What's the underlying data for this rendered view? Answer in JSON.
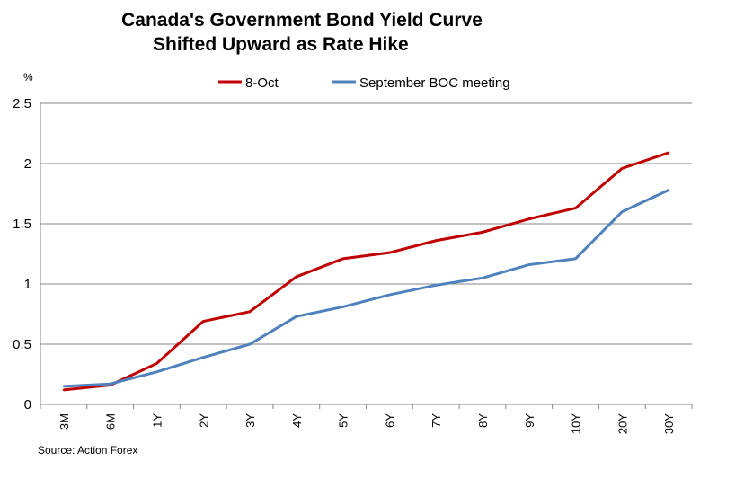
{
  "chart_data": {
    "type": "line",
    "title": [
      "Canada's Government Bond Yield Curve",
      "Shifted Upward as Rate Hike"
    ],
    "ylabel": "%",
    "source": "Source: Action Forex",
    "categories": [
      "3M",
      "6M",
      "1Y",
      "2Y",
      "3Y",
      "4Y",
      "5Y",
      "6Y",
      "7Y",
      "8Y",
      "9Y",
      "10Y",
      "20Y",
      "30Y"
    ],
    "ylim": [
      0,
      2.5
    ],
    "yticks": [
      "0",
      "0.5",
      "1",
      "1.5",
      "2",
      "2.5"
    ],
    "grid": true,
    "legend_position": "top",
    "series": [
      {
        "name": "8-Oct",
        "color": "#C00000",
        "values": [
          0.12,
          0.16,
          0.34,
          0.69,
          0.77,
          1.06,
          1.21,
          1.26,
          1.36,
          1.43,
          1.54,
          1.63,
          1.96,
          2.09
        ]
      },
      {
        "name": "September BOC meeting",
        "color": "#4F81BD",
        "values": [
          0.15,
          0.17,
          0.27,
          0.39,
          0.5,
          0.73,
          0.81,
          0.91,
          0.99,
          1.05,
          1.16,
          1.21,
          1.6,
          1.78
        ]
      }
    ]
  }
}
